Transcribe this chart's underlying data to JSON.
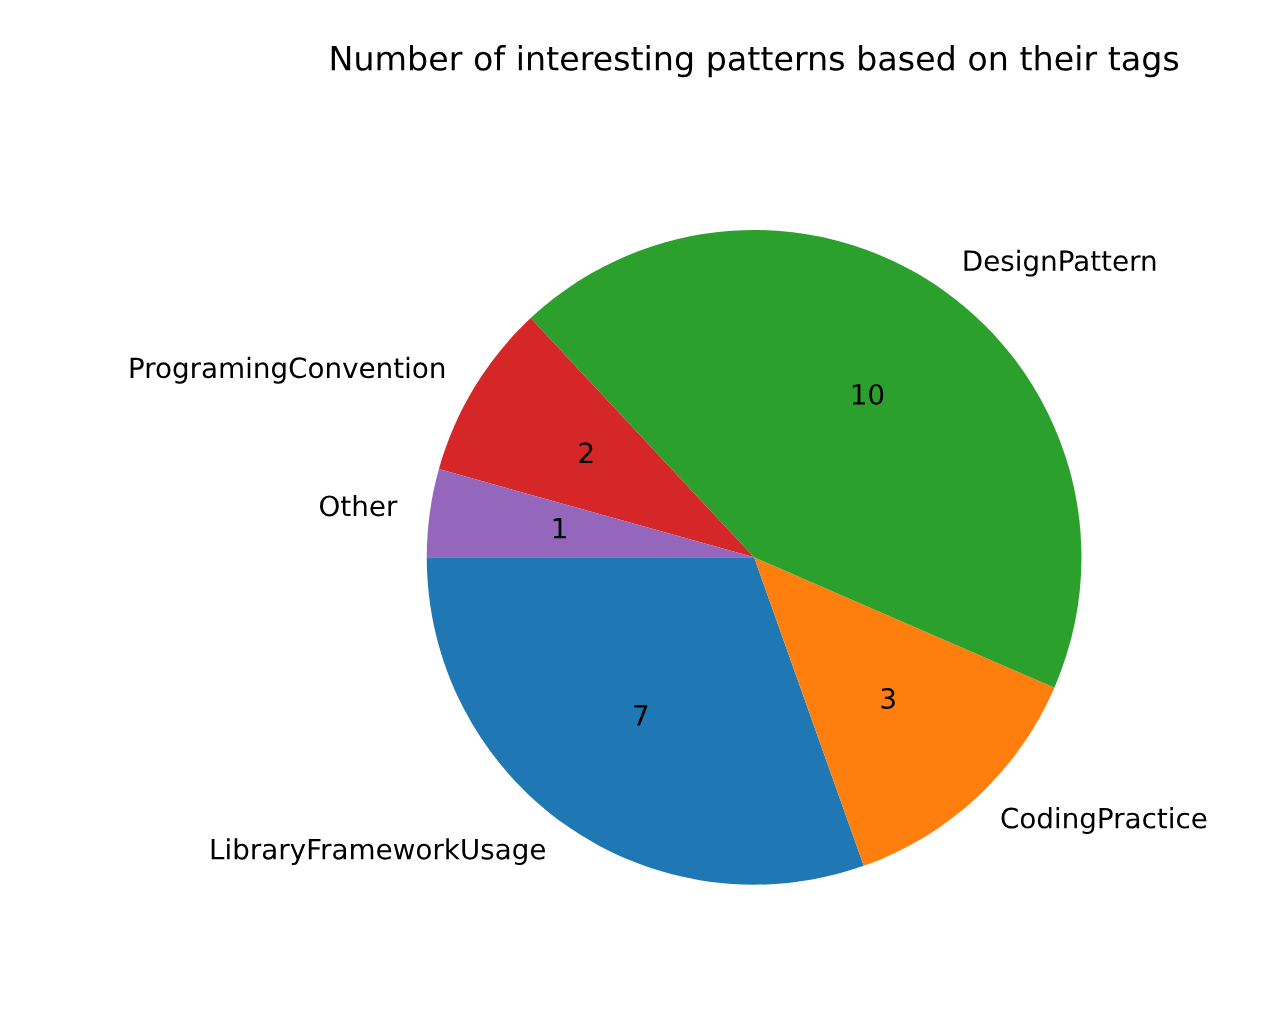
{
  "chart_data": {
    "type": "pie",
    "title": "Number of interesting patterns based on their tags",
    "categories": [
      "LibraryFrameworkUsage",
      "CodingPractice",
      "DesignPattern",
      "ProgramingConvention",
      "Other"
    ],
    "values": [
      7,
      3,
      10,
      2,
      1
    ],
    "colors": [
      "#1f77b4",
      "#ff7f0e",
      "#2ca02c",
      "#d62728",
      "#9467bd"
    ],
    "data_labels": true
  }
}
